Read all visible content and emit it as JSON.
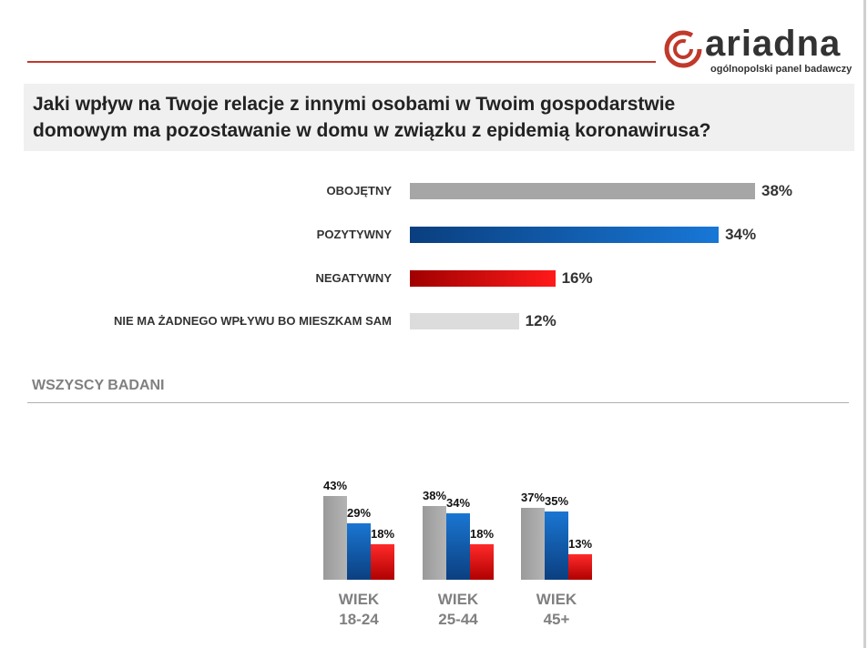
{
  "brand": {
    "name": "ariadna",
    "tagline": "ogólnopolski panel badawczy",
    "accent": "#c0392b"
  },
  "question": {
    "line1": "Jaki wpływ na Twoje relacje z innymi osobami w Twoim gospodarstwie",
    "line2": "domowym ma pozostawanie w domu w związku z epidemią koronawirusa?"
  },
  "section_title": "WSZYSCY BADANI",
  "chart_data": [
    {
      "type": "bar",
      "orientation": "horizontal",
      "title": "Jaki wpływ na Twoje relacje z innymi osobami w Twoim gospodarstwie domowym ma pozostawanie w domu w związku z epidemią koronawirusa?",
      "categories": [
        "OBOJĘTNY",
        "POZYTYWNY",
        "NEGATYWNY",
        "NIE MA ŻADNEGO WPŁYWU BO MIESZKAM SAM"
      ],
      "values": [
        38,
        34,
        16,
        12
      ],
      "value_labels": [
        "38%",
        "34%",
        "16%",
        "12%"
      ],
      "unit": "%",
      "xlim": [
        0,
        38
      ],
      "colors": [
        "#a6a6a6",
        "#1565c0",
        "#e01010",
        "#dcdcdc"
      ]
    },
    {
      "type": "bar",
      "orientation": "vertical",
      "categories": [
        "WIEK 18-24",
        "WIEK 25-44",
        "WIEK 45+"
      ],
      "category_lines": [
        [
          "WIEK",
          "18-24"
        ],
        [
          "WIEK",
          "25-44"
        ],
        [
          "WIEK",
          "45+"
        ]
      ],
      "series": [
        {
          "name": "OBOJĘTNY",
          "values": [
            43,
            38,
            37
          ],
          "labels": [
            "43%",
            "38%",
            "37%"
          ],
          "color": "#a6a6a6"
        },
        {
          "name": "POZYTYWNY",
          "values": [
            29,
            34,
            35
          ],
          "labels": [
            "29%",
            "34%",
            "35%"
          ],
          "color": "#1565c0"
        },
        {
          "name": "NEGATYWNY",
          "values": [
            18,
            18,
            13
          ],
          "labels": [
            "18%",
            "18%",
            "13%"
          ],
          "color": "#e01010"
        }
      ],
      "ylim": [
        0,
        43
      ],
      "unit": "%"
    }
  ]
}
